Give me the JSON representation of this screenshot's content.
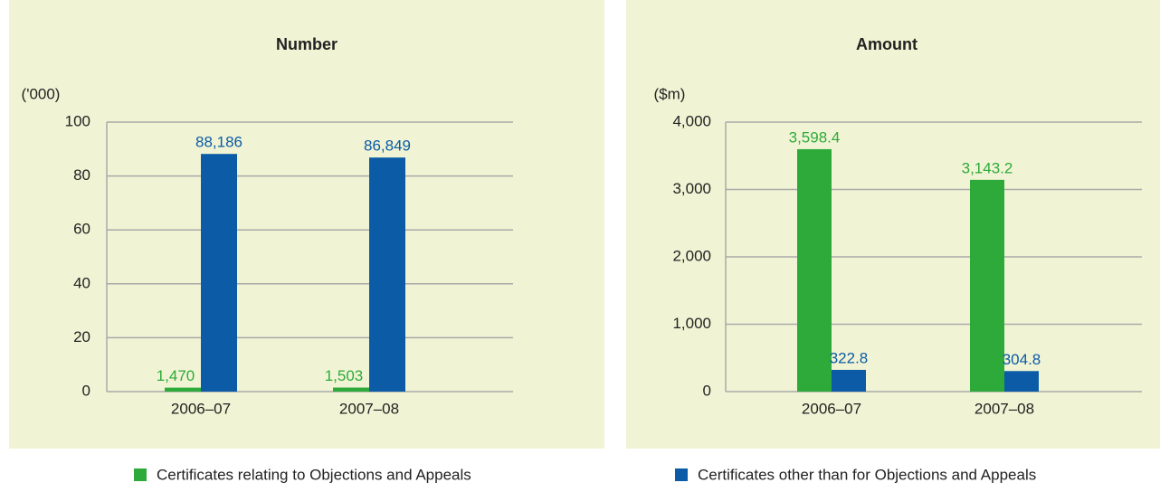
{
  "chart_data": [
    {
      "type": "bar",
      "title": "Number",
      "y_label": "('000)",
      "categories": [
        "2006–07",
        "2007–08"
      ],
      "series": [
        {
          "name": "Certificates relating to Objections and Appeals",
          "color": "#2eaa3a",
          "values": [
            1.47,
            1.503
          ],
          "value_labels": [
            "1,470",
            "1,503"
          ]
        },
        {
          "name": "Certificates other than for Objections and Appeals",
          "color": "#0b5ba6",
          "values": [
            88.186,
            86.849
          ],
          "value_labels": [
            "88,186",
            "86,849"
          ]
        }
      ],
      "ylim": [
        0,
        100
      ],
      "yticks": [
        0,
        20,
        40,
        60,
        80,
        100
      ],
      "grid": true
    },
    {
      "type": "bar",
      "title": "Amount",
      "y_label": "($m)",
      "categories": [
        "2006–07",
        "2007–08"
      ],
      "series": [
        {
          "color": "#2eaa3a",
          "values": [
            3598.4,
            3143.2
          ],
          "value_labels": [
            "3,598.4",
            "3,143.2"
          ]
        },
        {
          "color": "#0b5ba6",
          "values": [
            322.8,
            304.8
          ]
        }
      ],
      "ylim": [
        0,
        4000
      ],
      "yticks": [
        0,
        {
          "value": 1000,
          "label": "1,000"
        },
        {
          "value": 2000,
          "label": "2,000"
        },
        {
          "value": 3000,
          "label": "3,000"
        },
        {
          "value": 4000,
          "label": "4,000"
        }
      ],
      "grid": true
    }
  ]
}
